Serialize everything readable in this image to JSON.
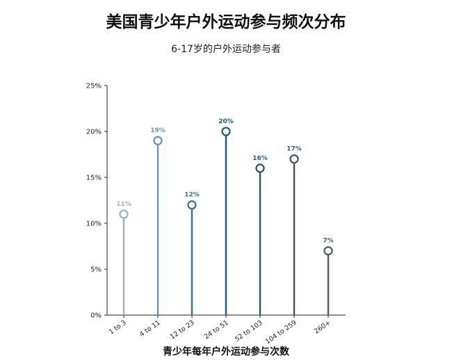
{
  "chart_data": {
    "type": "lollipop",
    "title": "美国青少年户外运动参与频次分布",
    "subtitle": "6-17岁的户外运动参与者",
    "xlabel": "青少年每年户外运动参与次数",
    "ylabel": "",
    "categories": [
      "1 to 3",
      "4 to 11",
      "12 to 23",
      "24 to 51",
      "52 to 103",
      "104 to 259",
      "260+"
    ],
    "values": [
      11,
      19,
      12,
      20,
      16,
      17,
      7
    ],
    "data_labels": [
      "11%",
      "19%",
      "12%",
      "20%",
      "16%",
      "17%",
      "7%"
    ],
    "ylim": [
      0,
      25
    ],
    "yticks": [
      0,
      5,
      10,
      15,
      20,
      25
    ],
    "ytick_labels": [
      "0%",
      "5%",
      "10%",
      "15%",
      "20%",
      "25%"
    ],
    "grid": false,
    "colors": [
      "#9fb1c6",
      "#6e91b8",
      "#3a6f98",
      "#1f5a80",
      "#2d5878",
      "#445668",
      "#555d66"
    ]
  }
}
